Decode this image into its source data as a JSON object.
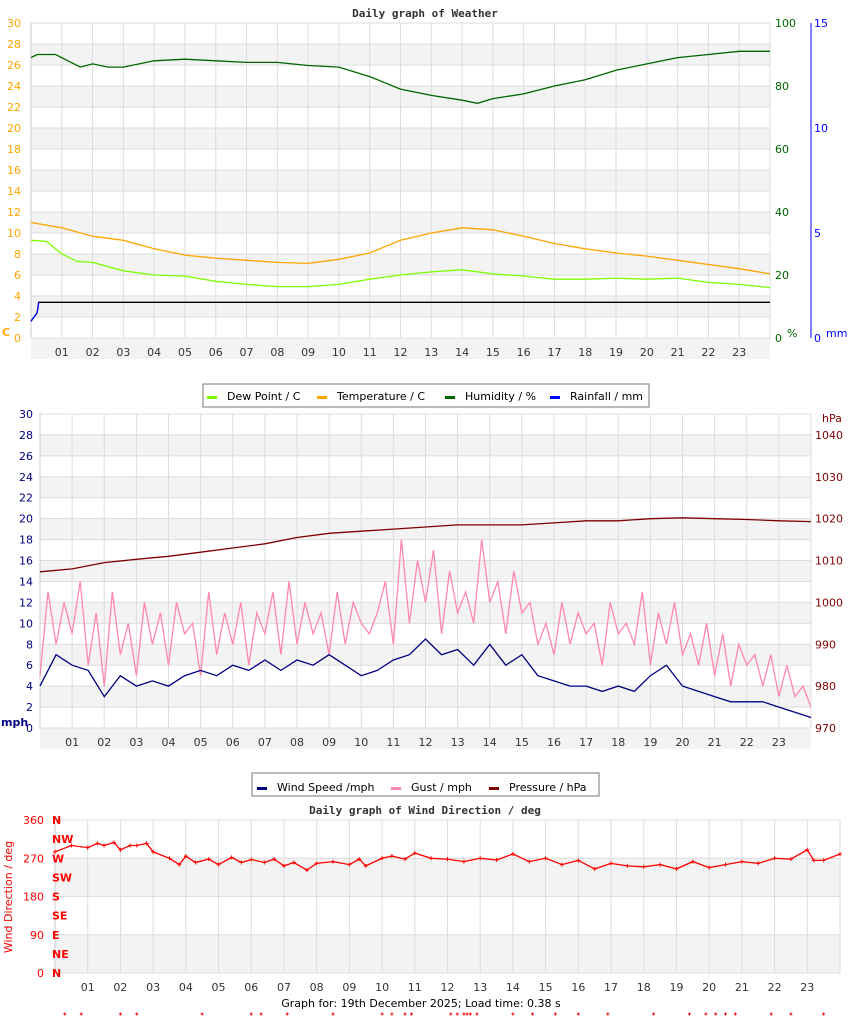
{
  "chart_data": [
    {
      "type": "line",
      "title": "Daily graph of Weather",
      "x_ticks": [
        "01",
        "02",
        "03",
        "04",
        "05",
        "06",
        "07",
        "08",
        "09",
        "10",
        "11",
        "12",
        "13",
        "14",
        "15",
        "16",
        "17",
        "18",
        "19",
        "20",
        "21",
        "22",
        "23"
      ],
      "xlim": [
        0,
        24
      ],
      "axes": {
        "left": {
          "label": "C",
          "range": [
            0,
            30
          ],
          "ticks": [
            0,
            2,
            4,
            6,
            8,
            10,
            12,
            14,
            16,
            18,
            20,
            22,
            24,
            26,
            28,
            30
          ],
          "color": "#ffa500"
        },
        "right1": {
          "label": "%",
          "range": [
            0,
            100
          ],
          "ticks": [
            0,
            20,
            40,
            60,
            80,
            100
          ],
          "color": "#006400"
        },
        "right2": {
          "label": "mm",
          "range": [
            0,
            15
          ],
          "ticks": [
            0,
            5,
            10,
            15
          ],
          "color": "#0000ff"
        }
      },
      "grid": true,
      "legend_position": "bottom",
      "series": [
        {
          "name": "Dew Point / C",
          "axis": "left",
          "color": "#7cfc00",
          "x": [
            0,
            0.5,
            1,
            1.5,
            2,
            3,
            4,
            5,
            6,
            7,
            8,
            9,
            10,
            11,
            12,
            13,
            14,
            15,
            16,
            17,
            18,
            19,
            20,
            21,
            22,
            23,
            24
          ],
          "y": [
            9.3,
            9.2,
            8,
            7.3,
            7.2,
            6.4,
            6,
            5.9,
            5.4,
            5.1,
            4.9,
            4.9,
            5.1,
            5.6,
            6,
            6.3,
            6.5,
            6.1,
            5.9,
            5.6,
            5.6,
            5.7,
            5.6,
            5.7,
            5.3,
            5.1,
            4.8
          ]
        },
        {
          "name": "Temperature / C",
          "axis": "left",
          "color": "#ffa500",
          "x": [
            0,
            1,
            2,
            3,
            4,
            5,
            6,
            7,
            8,
            9,
            10,
            11,
            12,
            13,
            14,
            15,
            16,
            17,
            18,
            19,
            20,
            21,
            22,
            23,
            24
          ],
          "y": [
            11,
            10.5,
            9.7,
            9.3,
            8.5,
            7.9,
            7.6,
            7.4,
            7.2,
            7.1,
            7.5,
            8.1,
            9.3,
            10,
            10.5,
            10.3,
            9.7,
            9,
            8.5,
            8.1,
            7.8,
            7.4,
            7,
            6.6,
            6.1
          ]
        },
        {
          "name": "Humidity / %",
          "axis": "right1",
          "color": "#006400",
          "x": [
            0,
            0.2,
            0.8,
            1.2,
            1.6,
            2,
            2.5,
            3,
            4,
            5,
            6,
            7,
            8,
            9,
            10,
            11,
            12,
            13,
            14,
            14.5,
            15,
            16,
            17,
            18,
            19,
            20,
            21,
            22,
            23,
            24
          ],
          "y": [
            89,
            90,
            90,
            88,
            86,
            87,
            86,
            86,
            88,
            88.5,
            88,
            87.5,
            87.5,
            86.5,
            86,
            83,
            79,
            77,
            75.5,
            74.5,
            76,
            77.5,
            80,
            82,
            85,
            87,
            89,
            90,
            91,
            91
          ]
        },
        {
          "name": "Rainfall / mm",
          "axis": "right2",
          "color": "#0000ff",
          "x": [
            0,
            0.2,
            0.25,
            24
          ],
          "y": [
            0.8,
            1.2,
            1.7,
            1.7
          ]
        }
      ]
    },
    {
      "type": "line",
      "title": "",
      "x_ticks": [
        "01",
        "02",
        "03",
        "04",
        "05",
        "06",
        "07",
        "08",
        "09",
        "10",
        "11",
        "12",
        "13",
        "14",
        "15",
        "16",
        "17",
        "18",
        "19",
        "20",
        "21",
        "22",
        "23"
      ],
      "xlim": [
        0,
        24
      ],
      "axes": {
        "left": {
          "label": "mph",
          "range": [
            0,
            30
          ],
          "ticks": [
            0,
            2,
            4,
            6,
            8,
            10,
            12,
            14,
            16,
            18,
            20,
            22,
            24,
            26,
            28,
            30
          ],
          "color": "#000080"
        },
        "right": {
          "label": "hPa",
          "range": [
            970,
            1045
          ],
          "ticks": [
            970,
            980,
            990,
            1000,
            1010,
            1020,
            1030,
            1040
          ],
          "color": "#800000"
        }
      },
      "grid": true,
      "legend_position": "bottom",
      "series": [
        {
          "name": "Wind Speed /mph",
          "axis": "left",
          "color": "#000080",
          "x": [
            0,
            0.5,
            1,
            1.5,
            2,
            2.5,
            3,
            3.5,
            4,
            4.5,
            5,
            5.5,
            6,
            6.5,
            7,
            7.5,
            8,
            8.5,
            9,
            9.5,
            10,
            10.5,
            11,
            11.5,
            12,
            12.5,
            13,
            13.5,
            14,
            14.5,
            15,
            15.5,
            16,
            16.5,
            17,
            17.5,
            18,
            18.5,
            19,
            19.5,
            20,
            20.5,
            21,
            21.5,
            22,
            22.5,
            23,
            23.5,
            24
          ],
          "y": [
            4,
            7,
            6,
            5.5,
            3,
            5,
            4,
            4.5,
            4,
            5,
            5.5,
            5,
            6,
            5.5,
            6.5,
            5.5,
            6.5,
            6,
            7,
            6,
            5,
            5.5,
            6.5,
            7,
            8.5,
            7,
            7.5,
            6,
            8,
            6,
            7,
            5,
            4.5,
            4,
            4,
            3.5,
            4,
            3.5,
            5,
            6,
            4,
            3.5,
            3,
            2.5,
            2.5,
            2.5,
            2,
            1.5,
            1
          ]
        },
        {
          "name": "Gust / mph",
          "axis": "left",
          "color": "#ff88aa",
          "x": [
            0,
            0.25,
            0.5,
            0.75,
            1,
            1.25,
            1.5,
            1.75,
            2,
            2.25,
            2.5,
            2.75,
            3,
            3.25,
            3.5,
            3.75,
            4,
            4.25,
            4.5,
            4.75,
            5,
            5.25,
            5.5,
            5.75,
            6,
            6.25,
            6.5,
            6.75,
            7,
            7.25,
            7.5,
            7.75,
            8,
            8.25,
            8.5,
            8.75,
            9,
            9.25,
            9.5,
            9.75,
            10,
            10.25,
            10.5,
            10.75,
            11,
            11.25,
            11.5,
            11.75,
            12,
            12.25,
            12.5,
            12.75,
            13,
            13.25,
            13.5,
            13.75,
            14,
            14.25,
            14.5,
            14.75,
            15,
            15.25,
            15.5,
            15.75,
            16,
            16.25,
            16.5,
            16.75,
            17,
            17.25,
            17.5,
            17.75,
            18,
            18.25,
            18.5,
            18.75,
            19,
            19.25,
            19.5,
            19.75,
            20,
            20.25,
            20.5,
            20.75,
            21,
            21.25,
            21.5,
            21.75,
            22,
            22.25,
            22.5,
            22.75,
            23,
            23.25,
            23.5,
            23.75,
            24
          ],
          "y": [
            5,
            13,
            8,
            12,
            9,
            14,
            6,
            11,
            4,
            13,
            7,
            10,
            5,
            12,
            8,
            11,
            6,
            12,
            9,
            10,
            5,
            13,
            7,
            11,
            8,
            12,
            6,
            11,
            9,
            13,
            7,
            14,
            8,
            12,
            9,
            11,
            7,
            13,
            8,
            12,
            10,
            9,
            11,
            14,
            8,
            18,
            10,
            16,
            12,
            17,
            9,
            15,
            11,
            13,
            10,
            18,
            12,
            14,
            9,
            15,
            11,
            12,
            8,
            10,
            7,
            12,
            8,
            11,
            9,
            10,
            6,
            12,
            9,
            10,
            8,
            13,
            6,
            11,
            8,
            12,
            7,
            9,
            6,
            10,
            5,
            9,
            4,
            8,
            6,
            7,
            4,
            7,
            3,
            6,
            3,
            4,
            2
          ]
        },
        {
          "name": "Pressure / hPa",
          "axis": "right",
          "color": "#800000",
          "x": [
            0,
            1,
            2,
            3,
            4,
            5,
            6,
            7,
            8,
            9,
            10,
            11,
            12,
            13,
            14,
            15,
            16,
            17,
            18,
            19,
            20,
            21,
            22,
            23,
            24
          ],
          "y": [
            1007.3,
            1008,
            1009.5,
            1010.3,
            1011,
            1012,
            1013,
            1014,
            1015.5,
            1016.5,
            1017,
            1017.5,
            1018,
            1018.5,
            1018.5,
            1018.5,
            1019,
            1019.5,
            1019.5,
            1020,
            1020.2,
            1020,
            1019.8,
            1019.5,
            1019.3
          ]
        }
      ]
    },
    {
      "type": "scatter",
      "title": "Daily graph of Wind Direction / deg",
      "ylabel": "Wind Direction / deg",
      "x_ticks": [
        "01",
        "02",
        "03",
        "04",
        "05",
        "06",
        "07",
        "08",
        "09",
        "10",
        "11",
        "12",
        "13",
        "14",
        "15",
        "16",
        "17",
        "18",
        "19",
        "20",
        "21",
        "22",
        "23"
      ],
      "xlim": [
        0,
        24
      ],
      "ylim": [
        0,
        360
      ],
      "y_ticks": [
        0,
        90,
        180,
        270,
        360
      ],
      "compass_labels": [
        "N",
        "NE",
        "E",
        "SE",
        "S",
        "SW",
        "W",
        "NW",
        "N"
      ],
      "color": "#ff0000",
      "grid": true,
      "series": [
        {
          "name": "Wind Direction / deg",
          "x": [
            0,
            0.5,
            1,
            1.3,
            1.5,
            1.8,
            2,
            2.3,
            2.5,
            2.8,
            3,
            3.5,
            3.8,
            4,
            4.3,
            4.7,
            5,
            5.4,
            5.7,
            6,
            6.4,
            6.7,
            7,
            7.3,
            7.7,
            8,
            8.5,
            9,
            9.3,
            9.5,
            10,
            10.3,
            10.7,
            11,
            11.5,
            12,
            12.5,
            13,
            13.5,
            14,
            14.5,
            15,
            15.5,
            16,
            16.5,
            17,
            17.5,
            18,
            18.5,
            19,
            19.5,
            20,
            20.5,
            21,
            21.5,
            22,
            22.5,
            23,
            23.2,
            23.5,
            24
          ],
          "y": [
            285,
            300,
            295,
            305,
            300,
            307,
            290,
            300,
            300,
            305,
            285,
            270,
            255,
            275,
            260,
            268,
            255,
            272,
            260,
            267,
            260,
            268,
            252,
            260,
            242,
            258,
            262,
            255,
            268,
            252,
            270,
            275,
            268,
            282,
            270,
            268,
            262,
            270,
            266,
            280,
            262,
            270,
            255,
            265,
            245,
            258,
            252,
            250,
            255,
            245,
            262,
            248,
            255,
            262,
            258,
            270,
            268,
            290,
            265,
            265,
            280
          ]
        }
      ]
    }
  ],
  "footer": "Graph for: 19th December 2025; Load time: 0.38 s",
  "bottom_markers_hours": [
    0.3,
    0.8,
    2,
    2.5,
    4.5,
    6,
    6.3,
    7.1,
    8.5,
    10,
    10.3,
    10.7,
    10.9,
    12.1,
    12.3,
    12.5,
    12.6,
    12.7,
    12.9,
    14,
    14.6,
    15.3,
    16,
    16.9,
    18.3,
    19.4,
    19.9,
    20.2,
    20.5,
    20.8,
    21.9,
    22.5,
    23.5
  ]
}
